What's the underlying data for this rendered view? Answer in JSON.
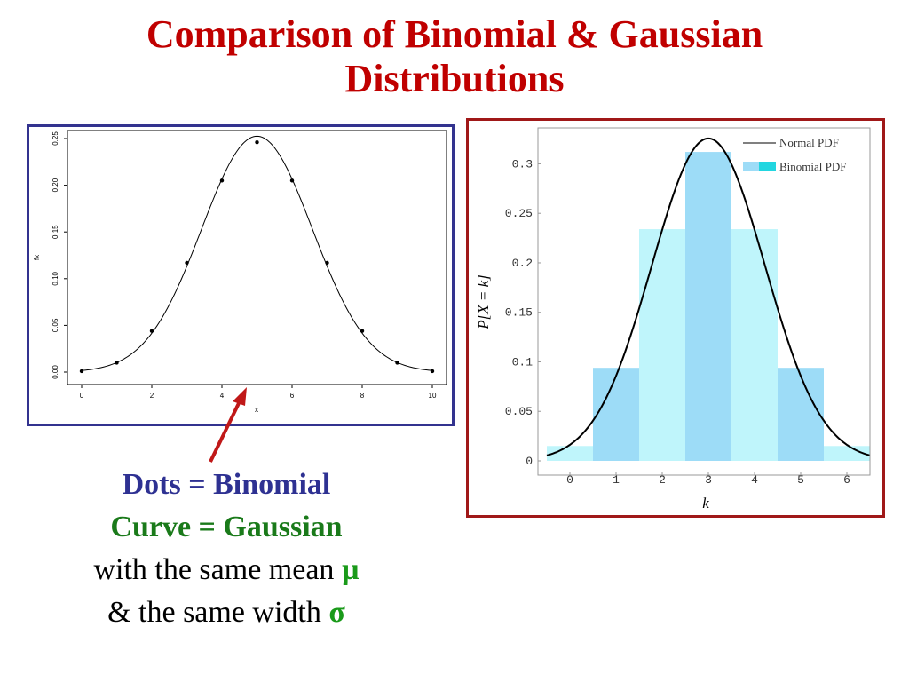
{
  "title": {
    "line1": "Comparison of Binomial  & Gaussian",
    "line2": "Distributions"
  },
  "caption": {
    "line1": "Dots = Binomial",
    "line2": "Curve = Gaussian",
    "line3_text": "with the same mean ",
    "line3_symbol": "µ",
    "line4_text": "& the same width ",
    "line4_symbol": "σ"
  },
  "colors": {
    "title": "#c00000",
    "left_border": "#33338f",
    "right_border": "#a01818",
    "arrow": "#c01818",
    "bar_light": "#bff5fb",
    "bar_dark": "#9ddcf7",
    "legend_bar": "#22d6e0"
  },
  "chart_data": [
    {
      "type": "scatter",
      "xlabel": "x",
      "ylabel": "fx",
      "xlim": [
        0,
        10
      ],
      "ylim": [
        0,
        0.25
      ],
      "x_ticks": [
        "0",
        "2",
        "4",
        "6",
        "8",
        "10"
      ],
      "y_ticks": [
        "0.00",
        "0.05",
        "0.10",
        "0.15",
        "0.20",
        "0.25"
      ],
      "x": [
        0,
        1,
        2,
        3,
        4,
        5,
        6,
        7,
        8,
        9,
        10
      ],
      "points": [
        0.001,
        0.01,
        0.044,
        0.117,
        0.205,
        0.246,
        0.205,
        0.117,
        0.044,
        0.01,
        0.001
      ],
      "curve": {
        "mean": 5,
        "sd": 1.58
      },
      "grid": false
    },
    {
      "type": "bar",
      "xlabel": "k",
      "ylabel": "P[X = k]",
      "xlim": [
        -0.5,
        6.5
      ],
      "ylim": [
        0,
        0.33
      ],
      "x_ticks": [
        "0",
        "1",
        "2",
        "3",
        "4",
        "5",
        "6"
      ],
      "y_ticks": [
        "0",
        "0.05",
        "0.1",
        "0.15",
        "0.2",
        "0.25",
        "0.3"
      ],
      "categories": [
        0,
        1,
        2,
        3,
        4,
        5,
        6
      ],
      "values": [
        0.015,
        0.094,
        0.234,
        0.312,
        0.234,
        0.094,
        0.015
      ],
      "curve": {
        "mean": 3,
        "sd": 1.225
      },
      "legend": [
        "Normal PDF",
        "Binomial PDF"
      ],
      "legend_position": "top-right",
      "grid": false
    }
  ]
}
